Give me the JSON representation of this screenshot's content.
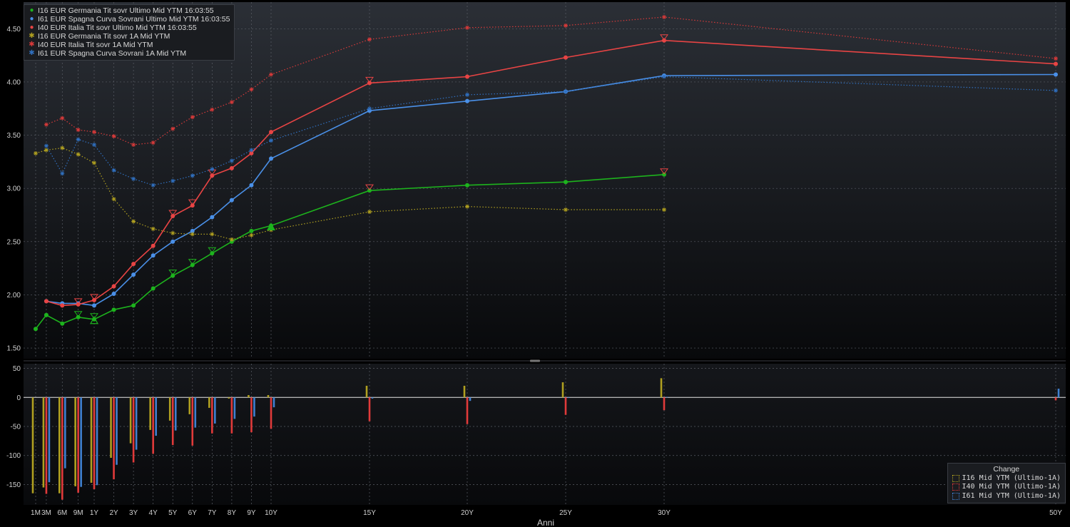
{
  "chart_data": [
    {
      "type": "line",
      "xlabel": "Anni",
      "categories": [
        "1M",
        "3M",
        "6M",
        "9M",
        "1Y",
        "2Y",
        "3Y",
        "4Y",
        "5Y",
        "6Y",
        "7Y",
        "8Y",
        "9Y",
        "10Y",
        "15Y",
        "20Y",
        "25Y",
        "30Y",
        "50Y"
      ],
      "x_years": [
        0.083,
        0.25,
        0.5,
        0.75,
        1,
        2,
        3,
        4,
        5,
        6,
        7,
        8,
        9,
        10,
        15,
        20,
        25,
        30,
        50
      ],
      "ylim": [
        1.4,
        4.75
      ],
      "yticks": [
        1.5,
        2.0,
        2.5,
        3.0,
        3.5,
        4.0,
        4.5
      ],
      "grid": true,
      "legend_position": "top-left",
      "series": [
        {
          "name": "I16 EUR Germania Tit sovr Ultimo Mid YTM 16:03:55",
          "color": "#1db31d",
          "style": "solid",
          "values": [
            1.68,
            1.81,
            1.73,
            1.79,
            1.77,
            1.86,
            1.9,
            2.06,
            2.18,
            2.28,
            2.39,
            2.5,
            2.6,
            2.65,
            2.98,
            3.03,
            3.06,
            3.13,
            null
          ]
        },
        {
          "name": "I61 EUR Spagna Curva Sovrani Ultimo Mid YTM 16:03:55",
          "color": "#4a90e8",
          "style": "solid",
          "values": [
            null,
            1.94,
            1.92,
            1.92,
            1.9,
            2.01,
            2.19,
            2.37,
            2.5,
            2.6,
            2.73,
            2.89,
            3.03,
            3.28,
            3.73,
            3.82,
            3.91,
            4.06,
            4.07
          ]
        },
        {
          "name": "I40 EUR Italia Tit sovr Ultimo Mid YTM 16:03:55",
          "color": "#e84444",
          "style": "solid",
          "values": [
            null,
            1.94,
            1.9,
            1.91,
            1.95,
            2.08,
            2.29,
            2.46,
            2.74,
            2.84,
            3.12,
            3.19,
            3.33,
            3.53,
            3.99,
            4.05,
            4.23,
            4.39,
            4.17
          ]
        },
        {
          "name": "I16 EUR Germania Tit sovr 1A Mid YTM",
          "color": "#b0a020",
          "style": "dotted",
          "values": [
            3.33,
            3.36,
            3.38,
            3.32,
            3.24,
            2.9,
            2.69,
            2.62,
            2.58,
            2.57,
            2.57,
            2.52,
            2.56,
            2.61,
            2.78,
            2.83,
            2.8,
            2.8,
            null
          ]
        },
        {
          "name": "I40 EUR Italia Tit sovr 1A Mid YTM",
          "color": "#d83a3a",
          "style": "dotted",
          "values": [
            null,
            3.6,
            3.66,
            3.55,
            3.53,
            3.49,
            3.41,
            3.43,
            3.56,
            3.67,
            3.74,
            3.81,
            3.93,
            4.07,
            4.4,
            4.51,
            4.53,
            4.61,
            4.22
          ]
        },
        {
          "name": "I61 EUR Spagna Curva Sovrani 1A Mid YTM",
          "color": "#3070c0",
          "style": "dotted",
          "values": [
            null,
            3.4,
            3.14,
            3.46,
            3.41,
            3.17,
            3.09,
            3.03,
            3.07,
            3.12,
            3.18,
            3.26,
            3.36,
            3.45,
            3.75,
            3.88,
            3.91,
            4.05,
            3.92
          ]
        }
      ]
    },
    {
      "type": "bar",
      "title": "Change",
      "ylim": [
        -185,
        58
      ],
      "yticks": [
        50,
        0,
        -50,
        -100,
        -150
      ],
      "grid": true,
      "legend_position": "bottom-right",
      "series": [
        {
          "name": "I16 Mid YTM (Ultimo-1A)",
          "color": "#b0a020",
          "values": [
            -165,
            -155,
            -165,
            -153,
            -147,
            -104,
            -79,
            -56,
            -40,
            -29,
            -18,
            -2,
            4,
            4,
            20,
            20,
            26,
            33,
            null
          ]
        },
        {
          "name": "I40 Mid YTM (Ultimo-1A)",
          "color": "#e03a3a",
          "values": [
            null,
            -166,
            -176,
            -164,
            -158,
            -141,
            -112,
            -97,
            -82,
            -83,
            -62,
            -62,
            -60,
            -54,
            -41,
            -46,
            -30,
            -22,
            -5
          ]
        },
        {
          "name": "I61 Mid YTM (Ultimo-1A)",
          "color": "#4080d0",
          "values": [
            null,
            -146,
            -122,
            -154,
            -151,
            -116,
            -90,
            -66,
            -57,
            -52,
            -45,
            -37,
            -33,
            -17,
            -2,
            -6,
            -0.5,
            1,
            15
          ]
        }
      ]
    }
  ]
}
